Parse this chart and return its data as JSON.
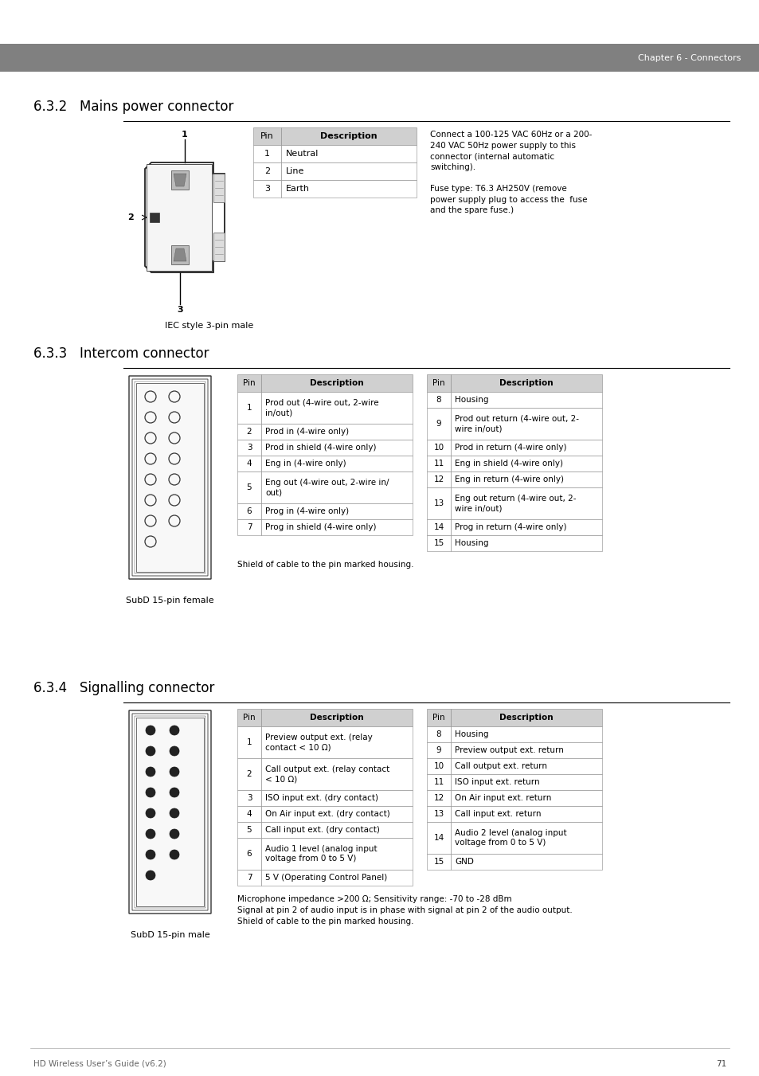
{
  "page_bg": "#ffffff",
  "header_bg": "#808080",
  "header_text": "Chapter 6 - Connectors",
  "header_text_color": "#ffffff",
  "table_header_bg": "#d0d0d0",
  "footer_text": "HD Wireless User’s Guide (v6.2)",
  "footer_page": "71",
  "section_632": {
    "title": "6.3.2   Mains power connector",
    "connector_label": "IEC style 3-pin male",
    "rows": [
      [
        "1",
        "Neutral"
      ],
      [
        "2",
        "Line"
      ],
      [
        "3",
        "Earth"
      ]
    ],
    "note1": "Connect a 100-125 VAC 60Hz or a 200-\n240 VAC 50Hz power supply to this\nconnector (internal automatic\nswitching).",
    "note2": "Fuse type: T6.3 AH250V (remove\npower supply plug to access the  fuse\nand the spare fuse.)"
  },
  "section_633": {
    "title": "6.3.3   Intercom connector",
    "connector_label": "SubD 15-pin female",
    "rows_left": [
      [
        "1",
        "Prod out (4-wire out, 2-wire\nin/out)"
      ],
      [
        "2",
        "Prod in (4-wire only)"
      ],
      [
        "3",
        "Prod in shield (4-wire only)"
      ],
      [
        "4",
        "Eng in (4-wire only)"
      ],
      [
        "5",
        "Eng out (4-wire out, 2-wire in/\nout)"
      ],
      [
        "6",
        "Prog in (4-wire only)"
      ],
      [
        "7",
        "Prog in shield (4-wire only)"
      ]
    ],
    "rows_right": [
      [
        "8",
        "Housing"
      ],
      [
        "9",
        "Prod out return (4-wire out, 2-\nwire in/out)"
      ],
      [
        "10",
        "Prod in return (4-wire only)"
      ],
      [
        "11",
        "Eng in shield (4-wire only)"
      ],
      [
        "12",
        "Eng in return (4-wire only)"
      ],
      [
        "13",
        "Eng out return (4-wire out, 2-\nwire in/out)"
      ],
      [
        "14",
        "Prog in return (4-wire only)"
      ],
      [
        "15",
        "Housing"
      ]
    ],
    "note": "Shield of cable to the pin marked housing."
  },
  "section_634": {
    "title": "6.3.4   Signalling connector",
    "connector_label": "SubD 15-pin male",
    "rows_left": [
      [
        "1",
        "Preview output ext. (relay\ncontact < 10 Ω)"
      ],
      [
        "2",
        "Call output ext. (relay contact\n< 10 Ω)"
      ],
      [
        "3",
        "ISO input ext. (dry contact)"
      ],
      [
        "4",
        "On Air input ext. (dry contact)"
      ],
      [
        "5",
        "Call input ext. (dry contact)"
      ],
      [
        "6",
        "Audio 1 level (analog input\nvoltage from 0 to 5 V)"
      ],
      [
        "7",
        "5 V (Operating Control Panel)"
      ]
    ],
    "rows_right": [
      [
        "8",
        "Housing"
      ],
      [
        "9",
        "Preview output ext. return"
      ],
      [
        "10",
        "Call output ext. return"
      ],
      [
        "11",
        "ISO input ext. return"
      ],
      [
        "12",
        "On Air input ext. return"
      ],
      [
        "13",
        "Call input ext. return"
      ],
      [
        "14",
        "Audio 2 level (analog input\nvoltage from 0 to 5 V)"
      ],
      [
        "15",
        "GND"
      ]
    ],
    "note": "Microphone impedance >200 Ω; Sensitivity range: -70 to -28 dBm\nSignal at pin 2 of audio input is in phase with signal at pin 2 of the audio output.\nShield of cable to the pin marked housing."
  }
}
